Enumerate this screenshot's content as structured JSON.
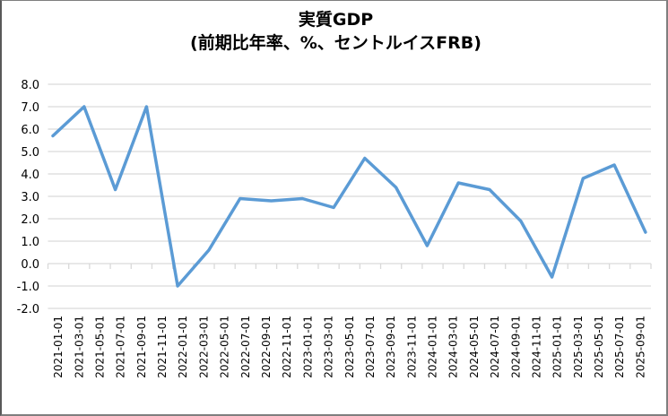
{
  "chart_data": {
    "type": "line",
    "title": "実質GDP",
    "subtitle": "(前期比年率、%、セントルイスFRB)",
    "xlabel": "",
    "ylabel": "",
    "ylim": [
      -2.0,
      8.0
    ],
    "ytick_step": 1.0,
    "yticks": [
      "8.0",
      "7.0",
      "6.0",
      "5.0",
      "4.0",
      "3.0",
      "2.0",
      "1.0",
      "0.0",
      "-1.0",
      "-2.0"
    ],
    "grid": true,
    "legend": "none",
    "line_color": "#5b9bd5",
    "x_tick_labels": [
      "2021-01-01",
      "2021-03-01",
      "2021-05-01",
      "2021-07-01",
      "2021-09-01",
      "2021-11-01",
      "2022-01-01",
      "2022-03-01",
      "2022-05-01",
      "2022-07-01",
      "2022-09-01",
      "2022-11-01",
      "2023-01-01",
      "2023-03-01",
      "2023-05-01",
      "2023-07-01",
      "2023-09-01",
      "2023-11-01",
      "2024-01-01",
      "2024-03-01",
      "2024-05-01",
      "2024-07-01",
      "2024-09-01",
      "2024-11-01",
      "2025-01-01",
      "2025-03-01",
      "2025-05-01",
      "2025-07-01",
      "2025-09-01"
    ],
    "series": [
      {
        "name": "実質GDP",
        "x": [
          "2021-01-01",
          "2021-04-01",
          "2021-07-01",
          "2021-10-01",
          "2022-01-01",
          "2022-04-01",
          "2022-07-01",
          "2022-10-01",
          "2023-01-01",
          "2023-04-01",
          "2023-07-01",
          "2023-10-01",
          "2024-01-01",
          "2024-04-01",
          "2024-07-01",
          "2024-10-01",
          "2025-01-01",
          "2025-04-01",
          "2025-07-01",
          "2025-10-01"
        ],
        "values": [
          5.7,
          7.0,
          3.3,
          7.0,
          -1.0,
          0.6,
          2.9,
          2.8,
          2.9,
          2.5,
          4.7,
          3.4,
          0.8,
          3.6,
          3.3,
          1.9,
          -0.6,
          3.8,
          4.4,
          1.4
        ]
      }
    ]
  }
}
